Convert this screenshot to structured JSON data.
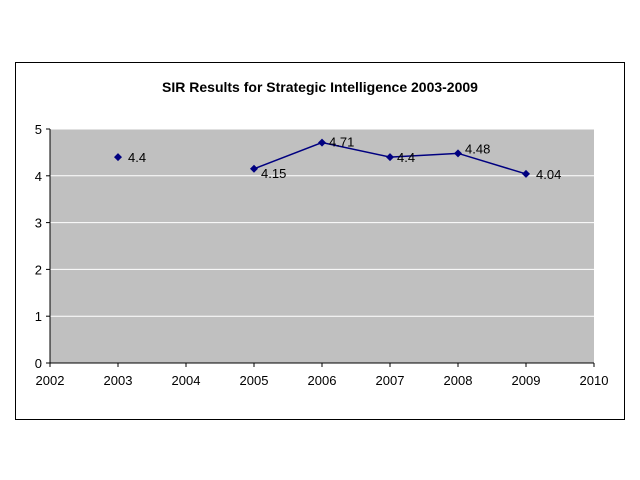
{
  "chart_data": {
    "type": "line",
    "title": "SIR Results for Strategic Intelligence 2003-2009",
    "xlabel": "",
    "ylabel": "",
    "xlim": [
      2002,
      2010
    ],
    "ylim": [
      0,
      5
    ],
    "x_ticks": [
      2002,
      2003,
      2004,
      2005,
      2006,
      2007,
      2008,
      2009,
      2010
    ],
    "y_ticks": [
      0,
      1,
      2,
      3,
      4,
      5
    ],
    "grid": "horizontal",
    "legend": "none",
    "series": [
      {
        "name": "SIR score",
        "points": [
          {
            "x": 2003,
            "y": 4.4,
            "label": "4.4",
            "label_dx": 10,
            "label_dy": 5,
            "line": false
          },
          {
            "x": 2005,
            "y": 4.15,
            "label": "4.15",
            "label_dx": 7,
            "label_dy": 9,
            "line": true
          },
          {
            "x": 2006,
            "y": 4.71,
            "label": "4.71",
            "label_dx": 7,
            "label_dy": 4,
            "line": true
          },
          {
            "x": 2007,
            "y": 4.4,
            "label": "4.4",
            "label_dx": 7,
            "label_dy": 5,
            "line": true
          },
          {
            "x": 2008,
            "y": 4.48,
            "label": "4.48",
            "label_dx": 7,
            "label_dy": 0,
            "line": true
          },
          {
            "x": 2009,
            "y": 4.04,
            "label": "4.04",
            "label_dx": 10,
            "label_dy": 5,
            "line": true
          }
        ]
      }
    ],
    "colors": {
      "line": "#000080",
      "marker": "#000080",
      "plot_bg": "#c0c0c0",
      "grid_line": "#ffffff",
      "axis": "#000000",
      "frame_border": "#000000",
      "text": "#000000"
    }
  }
}
